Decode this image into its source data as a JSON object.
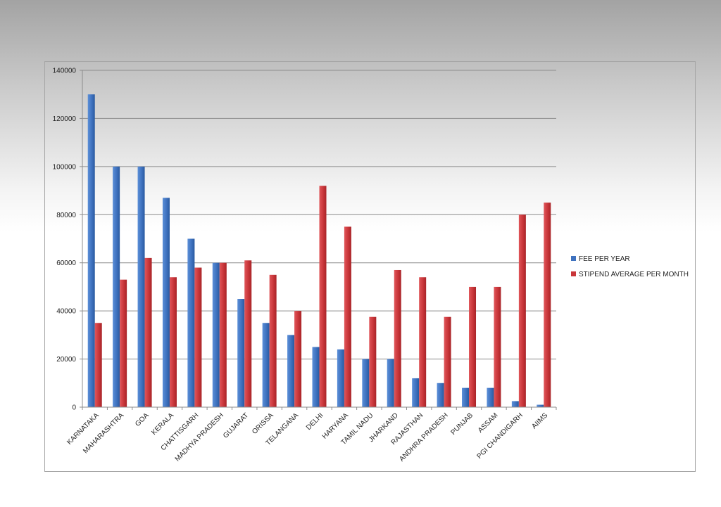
{
  "chart_data": {
    "type": "bar",
    "title": "",
    "xlabel": "",
    "ylabel": "",
    "ylim": [
      0,
      140000
    ],
    "yticks": [
      0,
      20000,
      40000,
      60000,
      80000,
      100000,
      120000,
      140000
    ],
    "ytick_labels": [
      "0",
      "20000",
      "40000",
      "60000",
      "80000",
      "100000",
      "120000",
      "140000"
    ],
    "grid": true,
    "legend_position": "right",
    "categories": [
      "KARNATAKA",
      "MAHARASHTRA",
      "GOA",
      "KERALA",
      "CHATTISGARH",
      "MADHYA PRADESH",
      "GUJARAT",
      "ORISSA",
      "TELANGANA",
      "DELHI",
      "HARYANA",
      "TAMIL NADU",
      "JHARKAND",
      "RAJASTHAN",
      "ANDHRA PRADESH",
      "PUNJAB",
      "ASSAM",
      "PGI CHANDIGARH",
      "AIIMS"
    ],
    "series": [
      {
        "name": "FEE PER YEAR",
        "color": "#3f72bf",
        "values": [
          130000,
          100000,
          100000,
          87000,
          70000,
          60000,
          45000,
          35000,
          30000,
          25000,
          24000,
          20000,
          20000,
          12000,
          10000,
          8000,
          8000,
          2500,
          1000
        ]
      },
      {
        "name": "STIPEND AVERAGE PER MONTH",
        "color": "#c9363a",
        "values": [
          35000,
          53000,
          62000,
          54000,
          58000,
          60000,
          61000,
          55000,
          40000,
          92000,
          75000,
          37500,
          57000,
          54000,
          37500,
          50000,
          50000,
          80000,
          85000
        ]
      }
    ]
  }
}
